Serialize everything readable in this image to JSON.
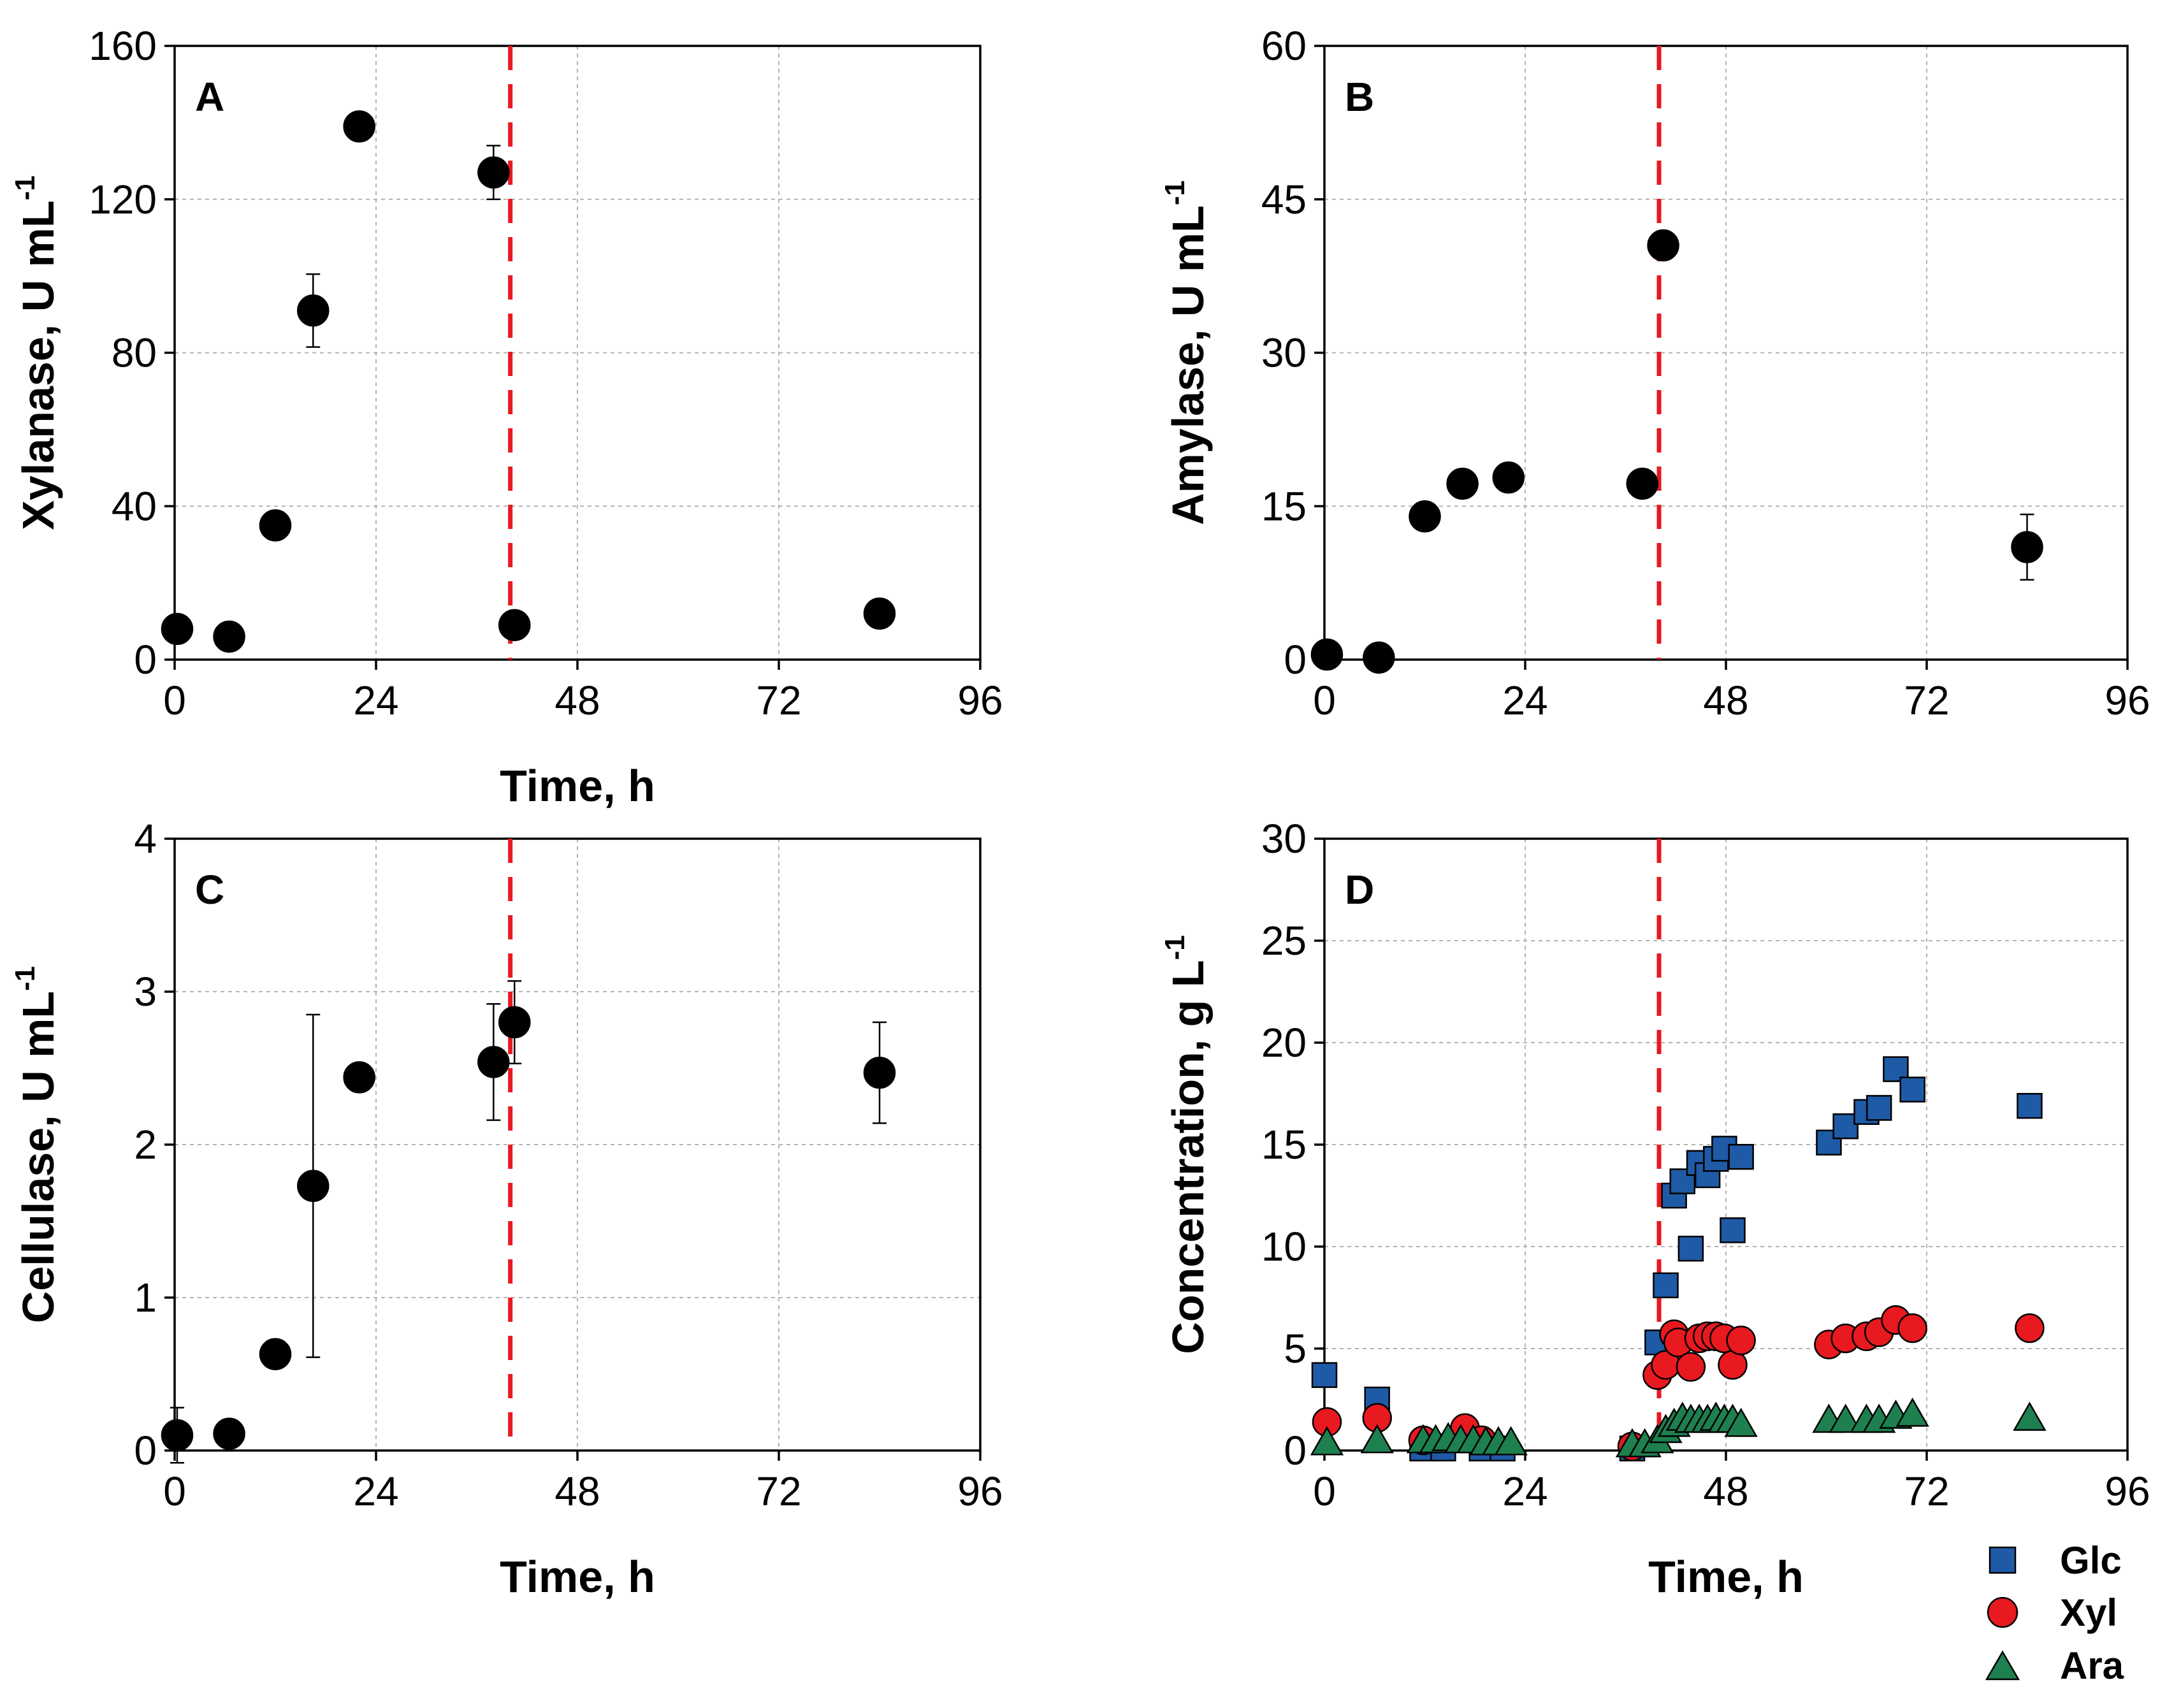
{
  "colors": {
    "glc": "#1f5aa6",
    "xyl": "#e8191f",
    "ara": "#1e7f4f",
    "black": "#000000",
    "vline": "#e8191f"
  },
  "legend": [
    {
      "label": "Glc",
      "marker": "square",
      "color": "#1f5aa6"
    },
    {
      "label": "Xyl",
      "marker": "circle",
      "color": "#e8191f"
    },
    {
      "label": "Ara",
      "marker": "triangle",
      "color": "#1e7f4f"
    }
  ],
  "chart_data": [
    {
      "panel": "A",
      "type": "scatter",
      "xlabel": "Time, h",
      "ylabel": "Xylanase, U mL",
      "ylabel_sup": "-1",
      "xlim": [
        0,
        96
      ],
      "ylim": [
        0,
        160
      ],
      "xticks": [
        0,
        24,
        48,
        72,
        96
      ],
      "yticks": [
        0,
        40,
        80,
        120,
        160
      ],
      "vline": 40,
      "grid": true,
      "series": [
        {
          "name": "Xylanase",
          "marker": "circle",
          "color": "#000000",
          "points": [
            {
              "x": 0.3,
              "y": 8
            },
            {
              "x": 6.5,
              "y": 6
            },
            {
              "x": 12,
              "y": 35
            },
            {
              "x": 16.5,
              "y": 91,
              "err": 9.5
            },
            {
              "x": 22,
              "y": 139
            },
            {
              "x": 38,
              "y": 127,
              "err": 7
            },
            {
              "x": 40.5,
              "y": 9
            },
            {
              "x": 84,
              "y": 12
            }
          ]
        }
      ]
    },
    {
      "panel": "B",
      "type": "scatter",
      "xlabel": "",
      "ylabel": "Amylase, U mL",
      "ylabel_sup": "-1",
      "xlim": [
        0,
        96
      ],
      "ylim": [
        0,
        60
      ],
      "xticks": [
        0,
        24,
        48,
        72,
        96
      ],
      "yticks": [
        0,
        15,
        30,
        45,
        60
      ],
      "vline": 40,
      "grid": true,
      "series": [
        {
          "name": "Amylase",
          "marker": "circle",
          "color": "#000000",
          "points": [
            {
              "x": 0.3,
              "y": 0.5
            },
            {
              "x": 6.5,
              "y": 0.2
            },
            {
              "x": 12,
              "y": 14
            },
            {
              "x": 16.5,
              "y": 17.2
            },
            {
              "x": 22,
              "y": 17.8
            },
            {
              "x": 38,
              "y": 17.2
            },
            {
              "x": 40.5,
              "y": 40.5
            },
            {
              "x": 84,
              "y": 11,
              "err": 3.2
            }
          ]
        }
      ]
    },
    {
      "panel": "C",
      "type": "scatter",
      "xlabel": "Time, h",
      "ylabel": "Cellulase, U mL",
      "ylabel_sup": "-1",
      "xlim": [
        0,
        96
      ],
      "ylim": [
        0,
        4
      ],
      "xticks": [
        0,
        24,
        48,
        72,
        96
      ],
      "yticks": [
        0,
        1,
        2,
        3,
        4
      ],
      "vline": 40,
      "grid": true,
      "series": [
        {
          "name": "Cellulase",
          "marker": "circle",
          "color": "#000000",
          "points": [
            {
              "x": 0.3,
              "y": 0.1,
              "err": 0.18
            },
            {
              "x": 6.5,
              "y": 0.11
            },
            {
              "x": 12,
              "y": 0.63
            },
            {
              "x": 16.5,
              "y": 1.73,
              "err": 1.12
            },
            {
              "x": 22,
              "y": 2.44
            },
            {
              "x": 38,
              "y": 2.54,
              "err": 0.38
            },
            {
              "x": 40.5,
              "y": 2.8,
              "err": 0.27
            },
            {
              "x": 84,
              "y": 2.47,
              "err": 0.33
            }
          ]
        }
      ]
    },
    {
      "panel": "D",
      "type": "scatter",
      "xlabel": "Time, h",
      "ylabel": "Concentration, g L",
      "ylabel_sup": "-1",
      "xlim": [
        0,
        96
      ],
      "ylim": [
        0,
        30
      ],
      "xticks": [
        0,
        24,
        48,
        72,
        96
      ],
      "yticks": [
        0,
        5,
        10,
        15,
        20,
        25,
        30
      ],
      "vline": 40,
      "grid": true,
      "series": [
        {
          "name": "Glc",
          "marker": "square",
          "color": "#1f5aa6",
          "points": [
            {
              "x": 0,
              "y": 3.7
            },
            {
              "x": 6.3,
              "y": 2.5
            },
            {
              "x": 11.7,
              "y": 0.1
            },
            {
              "x": 14.2,
              "y": 0.1
            },
            {
              "x": 18.8,
              "y": 0.1
            },
            {
              "x": 21.3,
              "y": 0.1
            },
            {
              "x": 36.8,
              "y": 0.1
            },
            {
              "x": 39.8,
              "y": 5.3
            },
            {
              "x": 40.8,
              "y": 8.1
            },
            {
              "x": 41.8,
              "y": 12.5
            },
            {
              "x": 42.8,
              "y": 13.2
            },
            {
              "x": 43.8,
              "y": 9.9
            },
            {
              "x": 44.8,
              "y": 14.1
            },
            {
              "x": 45.8,
              "y": 13.5
            },
            {
              "x": 46.8,
              "y": 14.3
            },
            {
              "x": 47.8,
              "y": 14.8
            },
            {
              "x": 48.8,
              "y": 10.8
            },
            {
              "x": 49.8,
              "y": 14.4
            },
            {
              "x": 60.3,
              "y": 15.1
            },
            {
              "x": 62.3,
              "y": 15.9
            },
            {
              "x": 64.8,
              "y": 16.6
            },
            {
              "x": 66.3,
              "y": 16.8
            },
            {
              "x": 68.3,
              "y": 18.7
            },
            {
              "x": 70.3,
              "y": 17.7
            },
            {
              "x": 84.3,
              "y": 16.9
            }
          ]
        },
        {
          "name": "Xyl",
          "marker": "circle",
          "color": "#e8191f",
          "points": [
            {
              "x": 0.3,
              "y": 1.4
            },
            {
              "x": 6.3,
              "y": 1.6
            },
            {
              "x": 11.8,
              "y": 0.5
            },
            {
              "x": 16.8,
              "y": 1.1
            },
            {
              "x": 18.8,
              "y": 0.5
            },
            {
              "x": 36.8,
              "y": 0.2
            },
            {
              "x": 39.8,
              "y": 3.7
            },
            {
              "x": 40.8,
              "y": 4.2
            },
            {
              "x": 41.8,
              "y": 5.7
            },
            {
              "x": 42.3,
              "y": 5.3
            },
            {
              "x": 43.8,
              "y": 4.1
            },
            {
              "x": 44.8,
              "y": 5.5
            },
            {
              "x": 45.8,
              "y": 5.6
            },
            {
              "x": 46.8,
              "y": 5.6
            },
            {
              "x": 47.8,
              "y": 5.5
            },
            {
              "x": 48.8,
              "y": 4.2
            },
            {
              "x": 49.8,
              "y": 5.4
            },
            {
              "x": 60.3,
              "y": 5.2
            },
            {
              "x": 62.3,
              "y": 5.5
            },
            {
              "x": 64.8,
              "y": 5.6
            },
            {
              "x": 66.3,
              "y": 5.8
            },
            {
              "x": 68.3,
              "y": 6.4
            },
            {
              "x": 70.3,
              "y": 6.0
            },
            {
              "x": 84.3,
              "y": 6.0
            }
          ]
        },
        {
          "name": "Ara",
          "marker": "triangle",
          "color": "#1e7f4f",
          "points": [
            {
              "x": 0.3,
              "y": 0.4
            },
            {
              "x": 6.3,
              "y": 0.5
            },
            {
              "x": 11.8,
              "y": 0.5
            },
            {
              "x": 13.3,
              "y": 0.5
            },
            {
              "x": 14.8,
              "y": 0.6
            },
            {
              "x": 16.3,
              "y": 0.5
            },
            {
              "x": 17.8,
              "y": 0.5
            },
            {
              "x": 19.3,
              "y": 0.4
            },
            {
              "x": 20.8,
              "y": 0.4
            },
            {
              "x": 22.3,
              "y": 0.4
            },
            {
              "x": 36.8,
              "y": 0.3
            },
            {
              "x": 38.3,
              "y": 0.3
            },
            {
              "x": 39.8,
              "y": 0.5
            },
            {
              "x": 40.8,
              "y": 1.0
            },
            {
              "x": 41.8,
              "y": 1.3
            },
            {
              "x": 42.8,
              "y": 1.6
            },
            {
              "x": 43.8,
              "y": 1.5
            },
            {
              "x": 44.8,
              "y": 1.5
            },
            {
              "x": 45.8,
              "y": 1.5
            },
            {
              "x": 46.8,
              "y": 1.6
            },
            {
              "x": 47.8,
              "y": 1.5
            },
            {
              "x": 48.8,
              "y": 1.5
            },
            {
              "x": 49.8,
              "y": 1.3
            },
            {
              "x": 60.3,
              "y": 1.5
            },
            {
              "x": 62.3,
              "y": 1.5
            },
            {
              "x": 64.8,
              "y": 1.5
            },
            {
              "x": 66.3,
              "y": 1.5
            },
            {
              "x": 68.3,
              "y": 1.7
            },
            {
              "x": 70.3,
              "y": 1.8
            },
            {
              "x": 84.3,
              "y": 1.6
            }
          ]
        }
      ]
    }
  ]
}
